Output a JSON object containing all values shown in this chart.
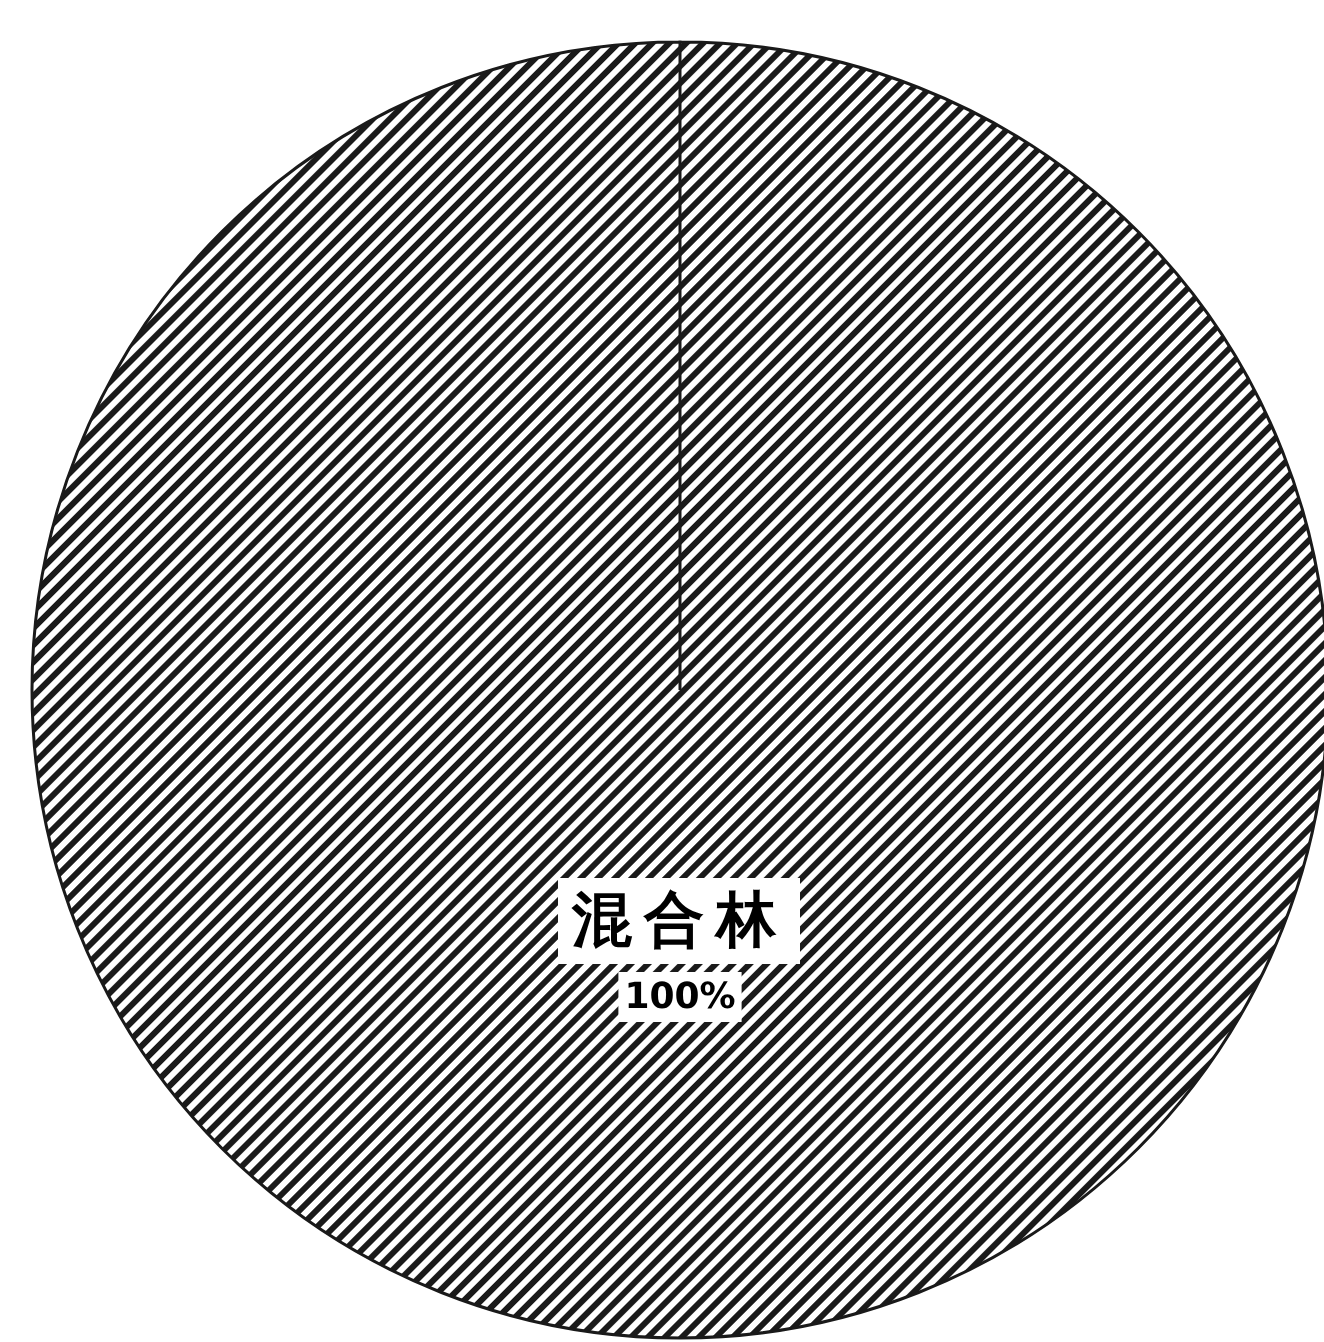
{
  "chart_data": {
    "type": "pie",
    "categories": [
      "混合林"
    ],
    "values": [
      100
    ],
    "colors": [
      "#1a1a1a"
    ],
    "value_labels": [
      "100%"
    ]
  }
}
